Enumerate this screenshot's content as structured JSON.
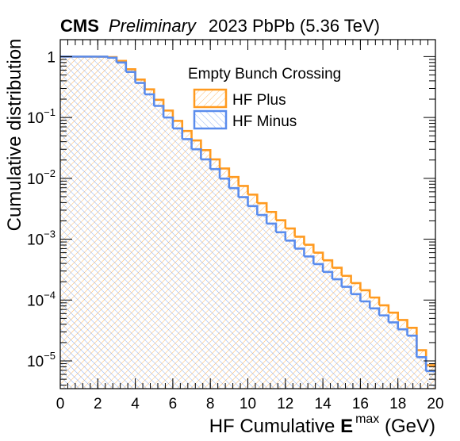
{
  "header": {
    "experiment": "CMS",
    "status": "Preliminary",
    "run_info": "2023 PbPb (5.36 TeV)"
  },
  "chart_data": {
    "type": "histogram-step",
    "xlabel_prefix": "HF Cumulative ",
    "xlabel_main": "E",
    "xlabel_superscript": "max",
    "xlabel_suffix": " (GeV)",
    "ylabel": "Cumulative distribution",
    "yscale": "log",
    "xlim": [
      0,
      20
    ],
    "ylim": [
      3.5e-06,
      1.9
    ],
    "x_ticks": [
      0,
      2,
      4,
      6,
      8,
      10,
      12,
      14,
      16,
      18,
      20
    ],
    "x_tick_labels": [
      "0",
      "2",
      "4",
      "6",
      "8",
      "10",
      "12",
      "14",
      "16",
      "18",
      "20"
    ],
    "y_ticks": [
      {
        "value": 1,
        "base": "1",
        "exp": ""
      },
      {
        "value": 0.1,
        "base": "10",
        "exp": "−1"
      },
      {
        "value": 0.01,
        "base": "10",
        "exp": "−2"
      },
      {
        "value": 0.001,
        "base": "10",
        "exp": "−3"
      },
      {
        "value": 0.0001,
        "base": "10",
        "exp": "−4"
      },
      {
        "value": 1e-05,
        "base": "10",
        "exp": "−5"
      }
    ],
    "bin_width": 0.5,
    "legend": {
      "title": "Empty Bunch Crossing",
      "position": "top-right"
    },
    "series": [
      {
        "name": "HF Plus",
        "color": "#ff9a1f",
        "values": [
          1,
          1,
          1,
          1,
          1,
          0.98,
          0.85,
          0.62,
          0.42,
          0.29,
          0.195,
          0.13,
          0.088,
          0.06,
          0.042,
          0.029,
          0.0205,
          0.0145,
          0.0105,
          0.0075,
          0.0054,
          0.0039,
          0.0028,
          0.00205,
          0.0015,
          0.0011,
          0.00081,
          0.0006,
          0.00045,
          0.00034,
          0.00025,
          0.00019,
          0.000145,
          0.00011,
          8.2e-05,
          6.2e-05,
          4.7e-05,
          3.5e-05,
          1.5e-05,
          8.5e-06
        ]
      },
      {
        "name": "HF Minus",
        "color": "#5a8ced",
        "values": [
          1,
          1,
          1,
          1,
          1,
          0.96,
          0.8,
          0.56,
          0.37,
          0.24,
          0.155,
          0.1,
          0.066,
          0.044,
          0.03,
          0.0205,
          0.0142,
          0.0099,
          0.0069,
          0.0049,
          0.0035,
          0.0025,
          0.0018,
          0.0013,
          0.00095,
          0.0007,
          0.00052,
          0.00039,
          0.00029,
          0.00022,
          0.000165,
          0.000125,
          9.5e-05,
          7.3e-05,
          5.6e-05,
          4.3e-05,
          3.3e-05,
          2.6e-05,
          1.15e-05,
          6.8e-06
        ]
      }
    ]
  }
}
